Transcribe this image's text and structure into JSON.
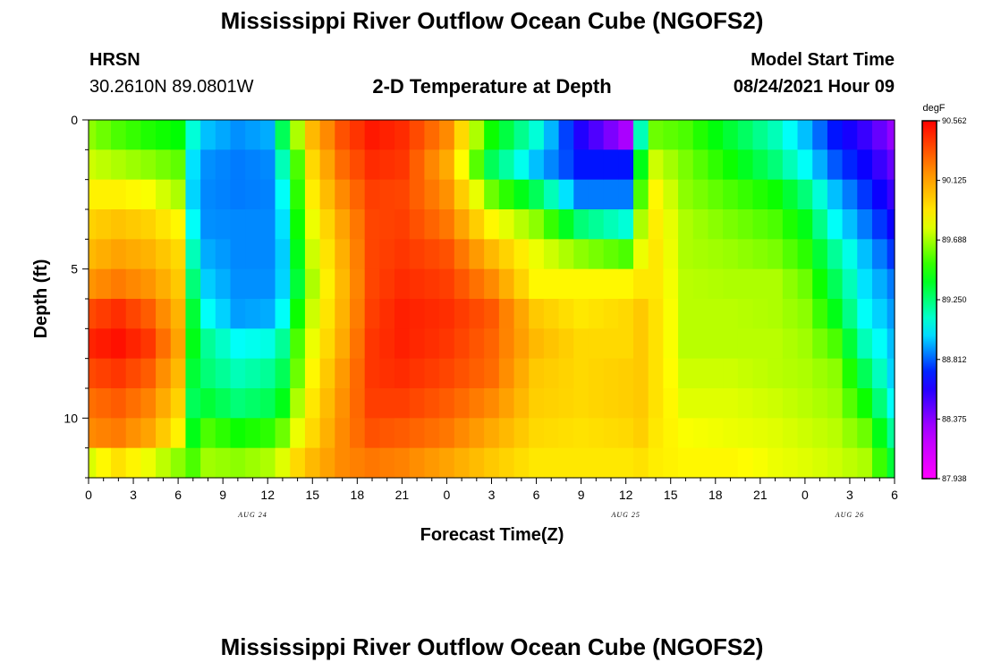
{
  "header": {
    "title": "Mississippi River Outflow Ocean Cube (NGOFS2)",
    "station": "HRSN",
    "coords": "30.2610N  89.0801W",
    "plot_title": "2-D Temperature at Depth",
    "model_start_label": "Model Start Time",
    "model_start_value": "08/24/2021 Hour 09"
  },
  "footer": {
    "title": "Mississippi River Outflow Ocean Cube (NGOFS2)"
  },
  "chart_data": {
    "type": "heatmap",
    "xlabel": "Forecast Time(Z)",
    "ylabel": "Depth (ft)",
    "x_tick_labels": [
      "0",
      "3",
      "6",
      "9",
      "12",
      "15",
      "18",
      "21",
      "0",
      "3",
      "6",
      "9",
      "12",
      "15",
      "18",
      "21",
      "0",
      "3",
      "6"
    ],
    "x_hours": [
      0,
      3,
      6,
      9,
      12,
      15,
      18,
      21,
      24,
      27,
      30,
      33,
      36,
      39,
      42,
      45,
      48,
      51,
      54
    ],
    "xlim": [
      0,
      54
    ],
    "date_labels": [
      {
        "text": "AUG 24",
        "hour": 11
      },
      {
        "text": "AUG 25",
        "hour": 36
      },
      {
        "text": "AUG 26",
        "hour": 51
      }
    ],
    "y_tick_labels": [
      "0",
      "5",
      "10"
    ],
    "y_ticks": [
      0,
      5,
      10
    ],
    "ylim": [
      0,
      12
    ],
    "depth_levels": [
      0.5,
      1.5,
      2.5,
      3.5,
      4.5,
      5.5,
      6.5,
      7.5,
      8.5,
      9.5,
      10.5,
      11.5
    ],
    "colorbar": {
      "unit": "degF",
      "labels": [
        "90.562",
        "90.125",
        "89.688",
        "89.250",
        "88.812",
        "88.375",
        "87.938"
      ],
      "min": 87.938,
      "max": 90.562
    },
    "profile_hours": [
      0,
      2,
      4,
      6,
      7,
      8,
      10,
      12,
      13,
      14,
      15,
      17,
      19,
      21,
      24,
      27,
      30,
      33,
      36,
      37,
      38,
      40,
      43,
      46,
      48,
      50,
      52,
      54
    ],
    "temperature_profiles": [
      [
        89.65,
        89.75,
        89.87,
        89.97,
        90.05,
        90.17,
        90.37,
        90.47,
        90.37,
        90.27,
        90.2,
        89.77
      ],
      [
        89.55,
        89.7,
        89.87,
        90.02,
        90.12,
        90.24,
        90.44,
        90.52,
        90.42,
        90.32,
        90.24,
        89.92
      ],
      [
        89.48,
        89.65,
        89.82,
        89.97,
        90.07,
        90.17,
        90.32,
        90.42,
        90.32,
        90.22,
        90.12,
        89.8
      ],
      [
        89.43,
        89.58,
        89.7,
        89.85,
        89.95,
        90.0,
        90.07,
        90.12,
        90.05,
        89.97,
        89.87,
        89.65
      ],
      [
        89.1,
        89.0,
        88.98,
        89.05,
        89.15,
        89.25,
        89.35,
        89.4,
        89.35,
        89.3,
        89.4,
        89.55
      ],
      [
        88.95,
        88.88,
        88.87,
        88.88,
        88.92,
        88.97,
        89.05,
        89.2,
        89.25,
        89.35,
        89.55,
        89.68
      ],
      [
        88.88,
        88.85,
        88.85,
        88.87,
        88.87,
        88.88,
        88.9,
        89.05,
        89.15,
        89.25,
        89.45,
        89.65
      ],
      [
        88.92,
        88.87,
        88.86,
        88.87,
        88.87,
        88.88,
        88.92,
        89.08,
        89.2,
        89.3,
        89.5,
        89.7
      ],
      [
        89.3,
        89.15,
        89.05,
        89.0,
        88.97,
        88.98,
        89.05,
        89.2,
        89.3,
        89.4,
        89.6,
        89.78
      ],
      [
        89.7,
        89.55,
        89.5,
        89.45,
        89.4,
        89.35,
        89.45,
        89.55,
        89.6,
        89.7,
        89.8,
        89.95
      ],
      [
        90.05,
        89.95,
        89.88,
        89.8,
        89.75,
        89.7,
        89.75,
        89.8,
        89.85,
        89.9,
        89.95,
        90.05
      ],
      [
        90.35,
        90.28,
        90.2,
        90.12,
        90.08,
        90.05,
        90.07,
        90.1,
        90.15,
        90.18,
        90.2,
        90.2
      ],
      [
        90.5,
        90.45,
        90.4,
        90.38,
        90.38,
        90.38,
        90.4,
        90.42,
        90.42,
        90.4,
        90.35,
        90.25
      ],
      [
        90.45,
        90.42,
        90.38,
        90.4,
        90.42,
        90.45,
        90.48,
        90.48,
        90.45,
        90.4,
        90.32,
        90.22
      ],
      [
        90.2,
        90.1,
        90.18,
        90.25,
        90.35,
        90.4,
        90.44,
        90.42,
        90.38,
        90.32,
        90.25,
        90.12
      ],
      [
        89.45,
        89.3,
        89.6,
        89.85,
        90.05,
        90.2,
        90.33,
        90.3,
        90.28,
        90.2,
        90.1,
        90.0
      ],
      [
        89.1,
        88.95,
        89.3,
        89.65,
        89.8,
        89.85,
        90.0,
        90.05,
        90.0,
        89.98,
        89.95,
        89.9
      ],
      [
        88.6,
        88.7,
        88.85,
        89.25,
        89.65,
        89.85,
        89.9,
        89.95,
        89.95,
        89.95,
        89.92,
        89.9
      ],
      [
        88.3,
        88.7,
        88.85,
        89.1,
        89.55,
        89.85,
        89.95,
        89.95,
        89.98,
        89.98,
        89.95,
        89.9
      ],
      [
        89.15,
        89.4,
        89.55,
        89.7,
        89.8,
        89.9,
        90.0,
        90.0,
        90.0,
        90.0,
        89.98,
        89.92
      ],
      [
        89.6,
        89.75,
        89.85,
        89.88,
        89.9,
        89.9,
        89.92,
        89.92,
        89.92,
        89.92,
        89.9,
        89.88
      ],
      [
        89.55,
        89.62,
        89.65,
        89.7,
        89.7,
        89.72,
        89.72,
        89.72,
        89.75,
        89.78,
        89.82,
        89.85
      ],
      [
        89.35,
        89.45,
        89.55,
        89.62,
        89.67,
        89.7,
        89.72,
        89.72,
        89.75,
        89.78,
        89.8,
        89.85
      ],
      [
        89.15,
        89.25,
        89.45,
        89.55,
        89.62,
        89.7,
        89.7,
        89.72,
        89.72,
        89.75,
        89.78,
        89.8
      ],
      [
        88.95,
        89.05,
        89.25,
        89.4,
        89.5,
        89.6,
        89.65,
        89.68,
        89.7,
        89.72,
        89.75,
        89.78
      ],
      [
        88.7,
        88.8,
        88.95,
        89.05,
        89.2,
        89.3,
        89.4,
        89.55,
        89.65,
        89.68,
        89.72,
        89.75
      ],
      [
        88.55,
        88.65,
        88.75,
        88.85,
        88.95,
        89.0,
        89.05,
        89.15,
        89.3,
        89.45,
        89.6,
        89.7
      ],
      [
        88.35,
        88.45,
        88.55,
        88.65,
        88.75,
        88.85,
        88.9,
        88.95,
        88.98,
        89.05,
        89.2,
        89.35
      ]
    ]
  }
}
